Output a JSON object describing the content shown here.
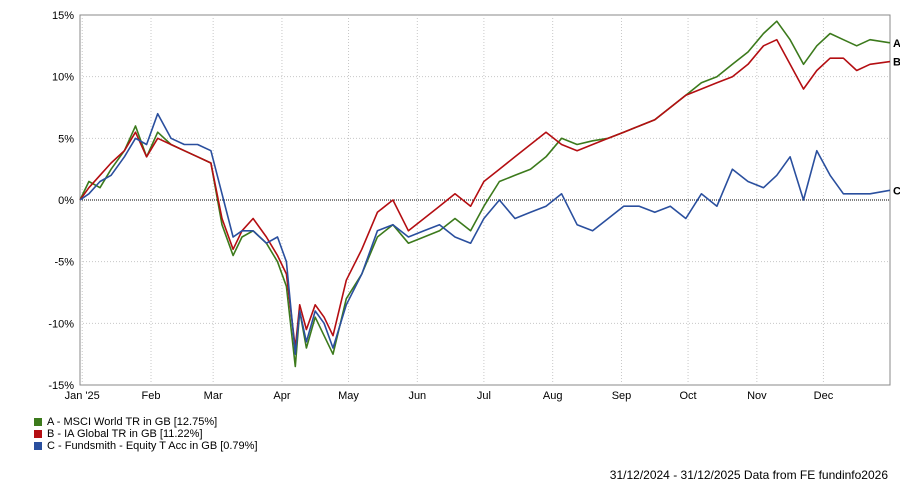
{
  "chart_data": {
    "type": "line",
    "x_tick_labels": [
      "Jan '25",
      "Feb",
      "Mar",
      "Apr",
      "May",
      "Jun",
      "Jul",
      "Aug",
      "Sep",
      "Oct",
      "Nov",
      "Dec"
    ],
    "y_tick_labels": [
      "15%",
      "10%",
      "5%",
      "0%",
      "-5%",
      "-10%",
      "-15%"
    ],
    "ylim": [
      -15,
      15
    ],
    "xlim": [
      "2024-12-31",
      "2025-12-31"
    ],
    "grid": true,
    "zero_line": true,
    "legend_position": "bottom-left",
    "series": [
      {
        "name": "A - MSCI World TR in GB [12.75%]",
        "end_label": "A",
        "color": "#3c7a1c",
        "x": [
          "2024-12-31",
          "2025-01-04",
          "2025-01-09",
          "2025-01-14",
          "2025-01-20",
          "2025-01-25",
          "2025-01-30",
          "2025-02-04",
          "2025-02-10",
          "2025-02-16",
          "2025-02-22",
          "2025-02-28",
          "2025-03-05",
          "2025-03-10",
          "2025-03-14",
          "2025-03-19",
          "2025-03-25",
          "2025-03-30",
          "2025-04-03",
          "2025-04-07",
          "2025-04-09",
          "2025-04-12",
          "2025-04-16",
          "2025-04-20",
          "2025-04-24",
          "2025-04-30",
          "2025-05-07",
          "2025-05-14",
          "2025-05-21",
          "2025-05-28",
          "2025-06-04",
          "2025-06-11",
          "2025-06-18",
          "2025-06-25",
          "2025-07-01",
          "2025-07-08",
          "2025-07-15",
          "2025-07-22",
          "2025-07-29",
          "2025-08-05",
          "2025-08-12",
          "2025-08-19",
          "2025-08-26",
          "2025-09-02",
          "2025-09-09",
          "2025-09-16",
          "2025-09-23",
          "2025-09-30",
          "2025-10-07",
          "2025-10-14",
          "2025-10-21",
          "2025-10-28",
          "2025-11-04",
          "2025-11-10",
          "2025-11-16",
          "2025-11-22",
          "2025-11-28",
          "2025-12-04",
          "2025-12-10",
          "2025-12-16",
          "2025-12-22",
          "2025-12-31"
        ],
        "y": [
          0,
          1.5,
          1.0,
          2.5,
          4.0,
          6.0,
          3.5,
          5.5,
          4.5,
          4.0,
          3.5,
          3.0,
          -2.0,
          -4.5,
          -3.0,
          -2.5,
          -3.5,
          -5.0,
          -7.0,
          -13.5,
          -9.0,
          -12.0,
          -9.5,
          -11.0,
          -12.5,
          -8.0,
          -6.0,
          -3.0,
          -2.0,
          -3.5,
          -3.0,
          -2.5,
          -1.5,
          -2.5,
          -0.5,
          1.5,
          2.0,
          2.5,
          3.5,
          5.0,
          4.5,
          4.8,
          5.0,
          5.5,
          6.0,
          6.5,
          7.5,
          8.5,
          9.5,
          10.0,
          11.0,
          12.0,
          13.5,
          14.5,
          13.0,
          11.0,
          12.5,
          13.5,
          13.0,
          12.5,
          13.0,
          12.75
        ]
      },
      {
        "name": "B - IA Global TR in GB [11.22%]",
        "end_label": "B",
        "color": "#b40e12",
        "x": [
          "2024-12-31",
          "2025-01-04",
          "2025-01-09",
          "2025-01-14",
          "2025-01-20",
          "2025-01-25",
          "2025-01-30",
          "2025-02-04",
          "2025-02-10",
          "2025-02-16",
          "2025-02-22",
          "2025-02-28",
          "2025-03-05",
          "2025-03-10",
          "2025-03-14",
          "2025-03-19",
          "2025-03-25",
          "2025-03-30",
          "2025-04-03",
          "2025-04-07",
          "2025-04-09",
          "2025-04-12",
          "2025-04-16",
          "2025-04-20",
          "2025-04-24",
          "2025-04-30",
          "2025-05-07",
          "2025-05-14",
          "2025-05-21",
          "2025-05-28",
          "2025-06-04",
          "2025-06-11",
          "2025-06-18",
          "2025-06-25",
          "2025-07-01",
          "2025-07-08",
          "2025-07-15",
          "2025-07-22",
          "2025-07-29",
          "2025-08-05",
          "2025-08-12",
          "2025-08-19",
          "2025-08-26",
          "2025-09-02",
          "2025-09-09",
          "2025-09-16",
          "2025-09-23",
          "2025-09-30",
          "2025-10-07",
          "2025-10-14",
          "2025-10-21",
          "2025-10-28",
          "2025-11-04",
          "2025-11-10",
          "2025-11-16",
          "2025-11-22",
          "2025-11-28",
          "2025-12-04",
          "2025-12-10",
          "2025-12-16",
          "2025-12-22",
          "2025-12-31"
        ],
        "y": [
          0,
          1.0,
          2.0,
          3.0,
          4.0,
          5.5,
          3.5,
          5.0,
          4.5,
          4.0,
          3.5,
          3.0,
          -1.5,
          -4.0,
          -2.5,
          -1.5,
          -3.0,
          -4.5,
          -6.0,
          -12.0,
          -8.5,
          -10.5,
          -8.5,
          -9.5,
          -11.0,
          -6.5,
          -4.0,
          -1.0,
          0.0,
          -2.5,
          -1.5,
          -0.5,
          0.5,
          -0.5,
          1.5,
          2.5,
          3.5,
          4.5,
          5.5,
          4.5,
          4.0,
          4.5,
          5.0,
          5.5,
          6.0,
          6.5,
          7.5,
          8.5,
          9.0,
          9.5,
          10.0,
          11.0,
          12.5,
          13.0,
          11.0,
          9.0,
          10.5,
          11.5,
          11.5,
          10.5,
          11.0,
          11.22
        ]
      },
      {
        "name": "C - Fundsmith - Equity T Acc in GB [0.79%]",
        "end_label": "C",
        "color": "#2a4f9e",
        "x": [
          "2024-12-31",
          "2025-01-04",
          "2025-01-09",
          "2025-01-14",
          "2025-01-20",
          "2025-01-25",
          "2025-01-30",
          "2025-02-04",
          "2025-02-10",
          "2025-02-16",
          "2025-02-22",
          "2025-02-28",
          "2025-03-05",
          "2025-03-10",
          "2025-03-14",
          "2025-03-19",
          "2025-03-25",
          "2025-03-30",
          "2025-04-03",
          "2025-04-07",
          "2025-04-09",
          "2025-04-12",
          "2025-04-16",
          "2025-04-20",
          "2025-04-24",
          "2025-04-30",
          "2025-05-07",
          "2025-05-14",
          "2025-05-21",
          "2025-05-28",
          "2025-06-04",
          "2025-06-11",
          "2025-06-18",
          "2025-06-25",
          "2025-07-01",
          "2025-07-08",
          "2025-07-15",
          "2025-07-22",
          "2025-07-29",
          "2025-08-05",
          "2025-08-12",
          "2025-08-19",
          "2025-08-26",
          "2025-09-02",
          "2025-09-09",
          "2025-09-16",
          "2025-09-23",
          "2025-09-30",
          "2025-10-07",
          "2025-10-14",
          "2025-10-21",
          "2025-10-28",
          "2025-11-04",
          "2025-11-10",
          "2025-11-16",
          "2025-11-22",
          "2025-11-28",
          "2025-12-04",
          "2025-12-10",
          "2025-12-16",
          "2025-12-22",
          "2025-12-31"
        ],
        "y": [
          0,
          0.5,
          1.5,
          2.0,
          3.5,
          5.0,
          4.5,
          7.0,
          5.0,
          4.5,
          4.5,
          4.0,
          0.5,
          -3.0,
          -2.5,
          -2.5,
          -3.5,
          -3.0,
          -5.0,
          -12.5,
          -9.0,
          -11.5,
          -9.0,
          -10.0,
          -12.0,
          -8.5,
          -6.0,
          -2.5,
          -2.0,
          -3.0,
          -2.5,
          -2.0,
          -3.0,
          -3.5,
          -1.5,
          0.0,
          -1.5,
          -1.0,
          -0.5,
          0.5,
          -2.0,
          -2.5,
          -1.5,
          -0.5,
          -0.5,
          -1.0,
          -0.5,
          -1.5,
          0.5,
          -0.5,
          2.5,
          1.5,
          1.0,
          2.0,
          3.5,
          0.0,
          4.0,
          2.0,
          0.5,
          0.5,
          0.5,
          0.79
        ]
      }
    ]
  },
  "legend": [
    {
      "label": "A - MSCI World TR in GB [12.75%]",
      "color": "#3c7a1c"
    },
    {
      "label": "B - IA Global TR in GB [11.22%]",
      "color": "#b40e12"
    },
    {
      "label": "C - Fundsmith - Equity T Acc in GB [0.79%]",
      "color": "#2a4f9e"
    }
  ],
  "footer": "31/12/2024 - 31/12/2025 Data from FE fundinfo2026"
}
